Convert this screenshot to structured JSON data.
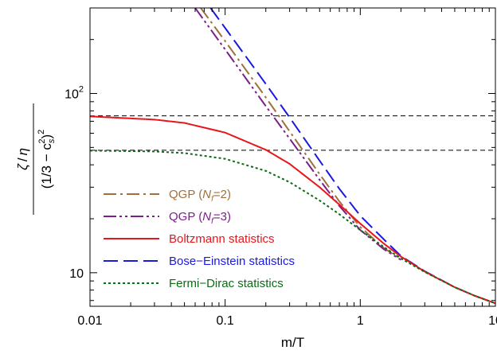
{
  "chart_data": {
    "type": "line",
    "xscale": "log",
    "yscale": "log",
    "xlim": [
      0.01,
      10
    ],
    "ylim": [
      6.5,
      300
    ],
    "xlabel": "m/T",
    "ylabel": {
      "num_zeta": "ζ",
      "num_slash": "/",
      "num_eta": "η",
      "den_open": "(1/3 − c",
      "den_sub": "s",
      "den_sup": "2",
      "den_close": ")",
      "den_outer_sup": "2"
    },
    "x_ticks": [
      {
        "value": 0.01,
        "label": "0.01"
      },
      {
        "value": 0.1,
        "label": "0.1"
      },
      {
        "value": 1,
        "label": "1"
      },
      {
        "value": 10,
        "label": "10"
      }
    ],
    "y_ticks": [
      {
        "value": 10,
        "base": "10",
        "exp": ""
      },
      {
        "value": 100,
        "base": "10",
        "exp": "2"
      }
    ],
    "reference_lines": [
      {
        "y": 75.0,
        "color": "#000000"
      },
      {
        "y": 48.2,
        "color": "#000000"
      }
    ],
    "legend": {
      "placement": "bottom-left",
      "entries": [
        {
          "series": "qgp2",
          "parts": [
            "QGP (",
            "N",
            "f",
            "=2)"
          ]
        },
        {
          "series": "qgp3",
          "parts": [
            "QGP (",
            "N",
            "f",
            "=3)"
          ]
        },
        {
          "series": "boltzmann",
          "parts": [
            "Boltzmann statistics"
          ]
        },
        {
          "series": "bose",
          "parts": [
            "Bose−Einstein statistics"
          ]
        },
        {
          "series": "fermi",
          "parts": [
            "Fermi−Dirac statistics"
          ]
        }
      ]
    },
    "series": [
      {
        "id": "qgp2",
        "color": "#a0703c",
        "dash": "16,5,3,5",
        "width": 2,
        "x": [
          0.066,
          0.1,
          0.2,
          0.3,
          0.5,
          0.7,
          1.0,
          1.5,
          2.0
        ],
        "y": [
          300,
          196,
          95,
          61.5,
          35.5,
          25.0,
          18.0,
          13.7,
          11.9
        ]
      },
      {
        "id": "qgp3",
        "color": "#7a1f8a",
        "dash": "16,4,3,4,3,4",
        "width": 2,
        "x": [
          0.06,
          0.1,
          0.2,
          0.3,
          0.5,
          0.7,
          1.0,
          1.5,
          2.0
        ],
        "y": [
          300,
          176,
          85,
          56,
          33.0,
          23.6,
          17.3,
          13.5,
          11.8
        ]
      },
      {
        "id": "bose",
        "color": "#1a1adf",
        "dash": "18,7",
        "width": 2,
        "x": [
          0.078,
          0.1,
          0.2,
          0.3,
          0.5,
          0.7,
          1.0,
          1.5,
          2.0,
          3.0,
          5.0,
          7.0,
          10.0
        ],
        "y": [
          300,
          232,
          113,
          73.5,
          42.2,
          29.4,
          20.8,
          15.3,
          12.4,
          10.2,
          8.3,
          7.45,
          6.75
        ]
      },
      {
        "id": "boltzmann",
        "color": "#e8161b",
        "dash": "",
        "width": 2,
        "x": [
          0.01,
          0.03,
          0.05,
          0.1,
          0.2,
          0.3,
          0.5,
          0.7,
          1.0,
          1.5,
          2.0,
          3.0,
          5.0,
          7.0,
          10.0
        ],
        "y": [
          74.5,
          71.5,
          68.5,
          60.5,
          48.5,
          40.5,
          30.0,
          24.0,
          18.8,
          14.5,
          12.3,
          10.15,
          8.3,
          7.45,
          6.75
        ]
      },
      {
        "id": "fermi",
        "color": "#0b6b17",
        "dash": "3,3",
        "width": 2,
        "x": [
          0.01,
          0.03,
          0.05,
          0.1,
          0.2,
          0.3,
          0.5,
          0.7,
          1.0,
          1.5,
          2.0,
          3.0,
          5.0,
          7.0,
          10.0
        ],
        "y": [
          48.0,
          47.5,
          46.5,
          43.2,
          37.0,
          32.0,
          25.3,
          21.2,
          17.3,
          13.9,
          12.0,
          10.1,
          8.3,
          7.45,
          6.75
        ]
      }
    ]
  }
}
